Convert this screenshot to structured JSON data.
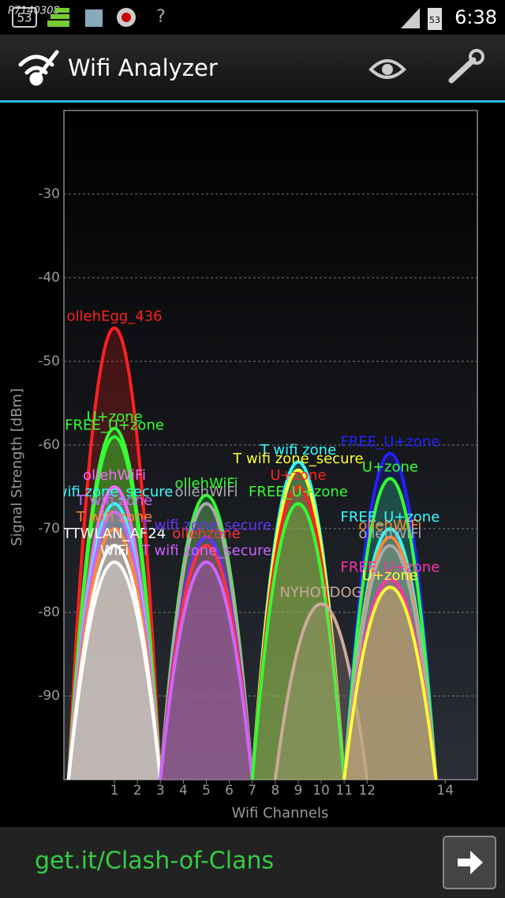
{
  "status_bar": {
    "watermark": "P7140308",
    "badge": "53",
    "battery": "53",
    "time": "6:38"
  },
  "app_bar": {
    "title": "Wifi Analyzer"
  },
  "chart_data": {
    "type": "channel",
    "y_label": "Signal Strength [dBm]",
    "x_label": "Wifi Channels",
    "ylim": [
      -100,
      -20
    ],
    "yticks": [
      -90,
      -80,
      -70,
      -60,
      -50,
      -40,
      -30
    ],
    "grid": true,
    "xlim": [
      2401,
      2491
    ],
    "xticks": [
      {
        "value": 2412,
        "label": "1"
      },
      {
        "value": 2417,
        "label": "2"
      },
      {
        "value": 2422,
        "label": "3"
      },
      {
        "value": 2427,
        "label": "4"
      },
      {
        "value": 2432,
        "label": "5"
      },
      {
        "value": 2437,
        "label": "6"
      },
      {
        "value": 2442,
        "label": "7"
      },
      {
        "value": 2447,
        "label": "8"
      },
      {
        "value": 2452,
        "label": "9"
      },
      {
        "value": 2457,
        "label": "10"
      },
      {
        "value": 2462,
        "label": "11"
      },
      {
        "value": 2467,
        "label": "12"
      },
      {
        "value": 2484,
        "label": "14"
      }
    ],
    "series": [
      {
        "name": "ollehEgg_436",
        "color": "#ff2020",
        "x": [
          2412
        ],
        "values": [
          -46
        ]
      },
      {
        "name": "U+zone",
        "color": "#33ff33",
        "x": [
          2412
        ],
        "values": [
          -58
        ]
      },
      {
        "name": "FREE_U+zone",
        "color": "#33ff33",
        "x": [
          2412
        ],
        "values": [
          -59
        ]
      },
      {
        "name": "ollehWiFi",
        "color": "#ff66ff",
        "x": [
          2412
        ],
        "values": [
          -65
        ]
      },
      {
        "name": "wifi zone_secure",
        "color": "#33ffff",
        "x": [
          2412
        ],
        "values": [
          -67
        ]
      },
      {
        "name": "T wifi zone",
        "color": "#cc66ff",
        "x": [
          2412
        ],
        "values": [
          -68
        ]
      },
      {
        "name": "T wifi zone",
        "color": "#ff8833",
        "x": [
          2412
        ],
        "values": [
          -70
        ]
      },
      {
        "name": "TTWLAN_AF24",
        "color": "#ffffff",
        "x": [
          2412
        ],
        "values": [
          -72
        ]
      },
      {
        "name": "WiFi",
        "color": "#ffffff",
        "x": [
          2412
        ],
        "values": [
          -74
        ]
      },
      {
        "name": "ollehWiFi",
        "color": "#33ff33",
        "x": [
          2432
        ],
        "values": [
          -66
        ]
      },
      {
        "name": "ollehWiFi",
        "color": "#aaaaaa",
        "x": [
          2432
        ],
        "values": [
          -67
        ]
      },
      {
        "name": "T wifi zone_secure",
        "color": "#6633ff",
        "x": [
          2432
        ],
        "values": [
          -71
        ]
      },
      {
        "name": "ollehzone",
        "color": "#ff3333",
        "x": [
          2432
        ],
        "values": [
          -72
        ]
      },
      {
        "name": "T wifi zone_secure",
        "color": "#cc66ff",
        "x": [
          2432
        ],
        "values": [
          -74
        ]
      },
      {
        "name": "T wifi zone",
        "color": "#33ffff",
        "x": [
          2452
        ],
        "values": [
          -62
        ]
      },
      {
        "name": "T wifi zone_secure",
        "color": "#ffff33",
        "x": [
          2452
        ],
        "values": [
          -63
        ]
      },
      {
        "name": "U+zone",
        "color": "#ff2020",
        "x": [
          2452
        ],
        "values": [
          -65
        ]
      },
      {
        "name": "FREE_U+zone",
        "color": "#33ff33",
        "x": [
          2452
        ],
        "values": [
          -67
        ]
      },
      {
        "name": "NYHOTDOG",
        "color": "#ccaa99",
        "x": [
          2457
        ],
        "values": [
          -79
        ]
      },
      {
        "name": "FREE_U+zone",
        "color": "#2222ff",
        "x": [
          2472
        ],
        "values": [
          -61
        ]
      },
      {
        "name": "U+zone",
        "color": "#33ff33",
        "x": [
          2472
        ],
        "values": [
          -64
        ]
      },
      {
        "name": "FREE_U+zone",
        "color": "#33ffff",
        "x": [
          2472
        ],
        "values": [
          -70
        ]
      },
      {
        "name": "ollehWiFi",
        "color": "#ff8833",
        "x": [
          2472
        ],
        "values": [
          -71
        ]
      },
      {
        "name": "ollehWiFi",
        "color": "#aaaaaa",
        "x": [
          2472
        ],
        "values": [
          -72
        ]
      },
      {
        "name": "FREE_U+zone",
        "color": "#ff33aa",
        "x": [
          2472
        ],
        "values": [
          -76
        ]
      },
      {
        "name": "U+zone",
        "color": "#ffff33",
        "x": [
          2472
        ],
        "values": [
          -77
        ]
      }
    ]
  },
  "ad": {
    "text": "get.it/Clash-of-Clans"
  }
}
